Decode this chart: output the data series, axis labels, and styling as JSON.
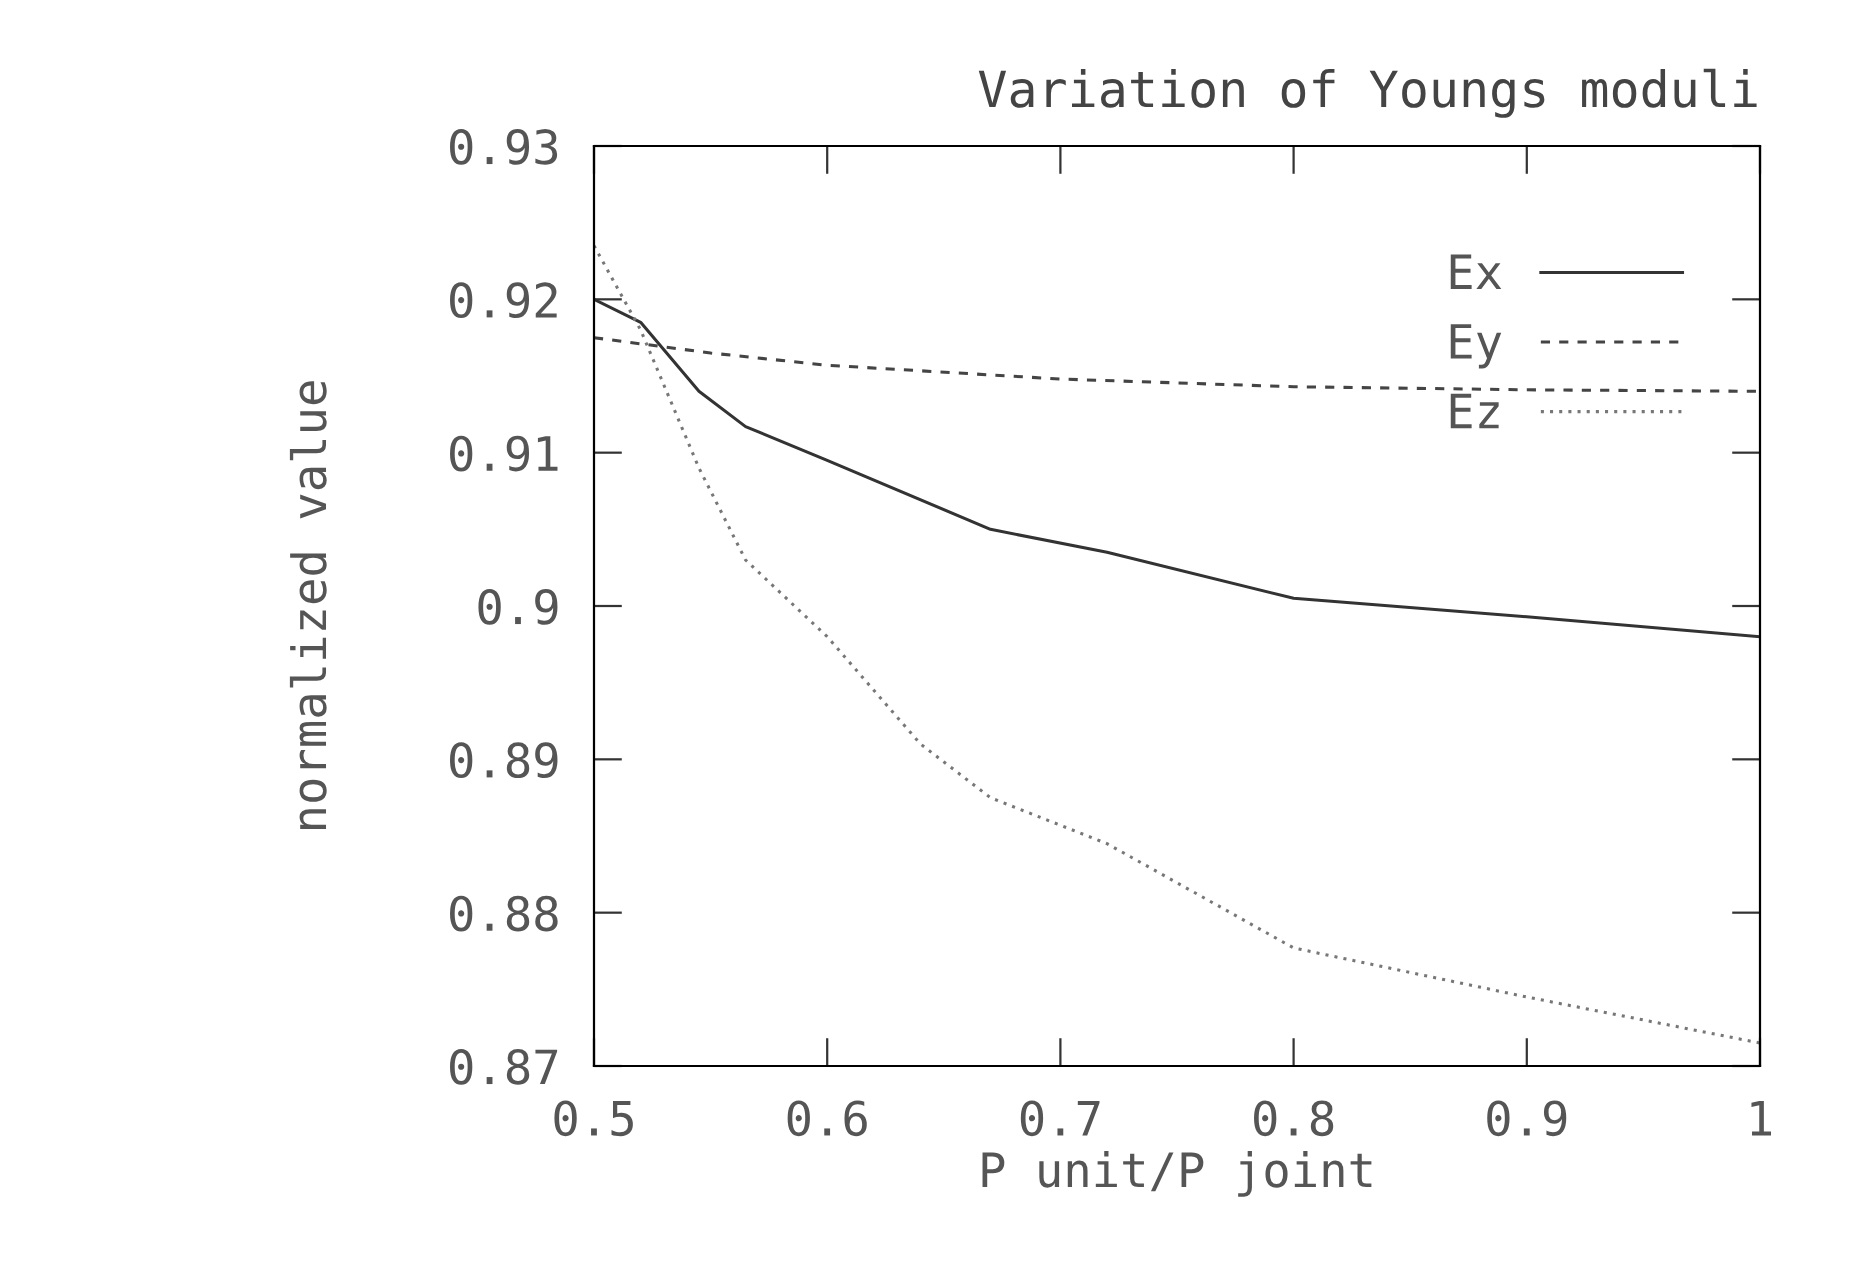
{
  "chart_data": {
    "type": "line",
    "title": "Variation of Youngs moduli",
    "xlabel": "P unit/P joint",
    "ylabel": "normalized value",
    "xlim": [
      0.5,
      1
    ],
    "xticks": [
      0.5,
      0.6,
      0.7,
      0.8,
      0.9,
      1
    ],
    "ylim": [
      0.87,
      0.93
    ],
    "yticks": [
      0.87,
      0.88,
      0.89,
      0.9,
      0.91,
      0.92,
      0.93
    ],
    "grid": false,
    "legend": "top right",
    "marker": "none",
    "series": [
      {
        "name": "Ex",
        "color": "#333333",
        "line_style": "solid",
        "x": [
          0.5,
          0.52,
          0.545,
          0.565,
          0.6,
          0.67,
          0.72,
          0.8,
          0.9,
          1.0
        ],
        "values": [
          0.92,
          0.9185,
          0.914,
          0.9117,
          0.9095,
          0.905,
          0.9035,
          0.9005,
          0.8993,
          0.898
        ]
      },
      {
        "name": "Ey",
        "color": "#444444",
        "line_style": "dashed",
        "x": [
          0.5,
          0.55,
          0.6,
          0.7,
          0.8,
          0.9,
          1.0
        ],
        "values": [
          0.9175,
          0.9165,
          0.9157,
          0.9148,
          0.9143,
          0.9141,
          0.914
        ]
      },
      {
        "name": "Ez",
        "color": "#777777",
        "line_style": "dotted",
        "x": [
          0.5,
          0.52,
          0.545,
          0.565,
          0.6,
          0.64,
          0.67,
          0.72,
          0.8,
          0.9,
          1.0
        ],
        "values": [
          0.9235,
          0.918,
          0.909,
          0.903,
          0.898,
          0.891,
          0.8875,
          0.8845,
          0.8777,
          0.8745,
          0.8715
        ]
      }
    ]
  }
}
